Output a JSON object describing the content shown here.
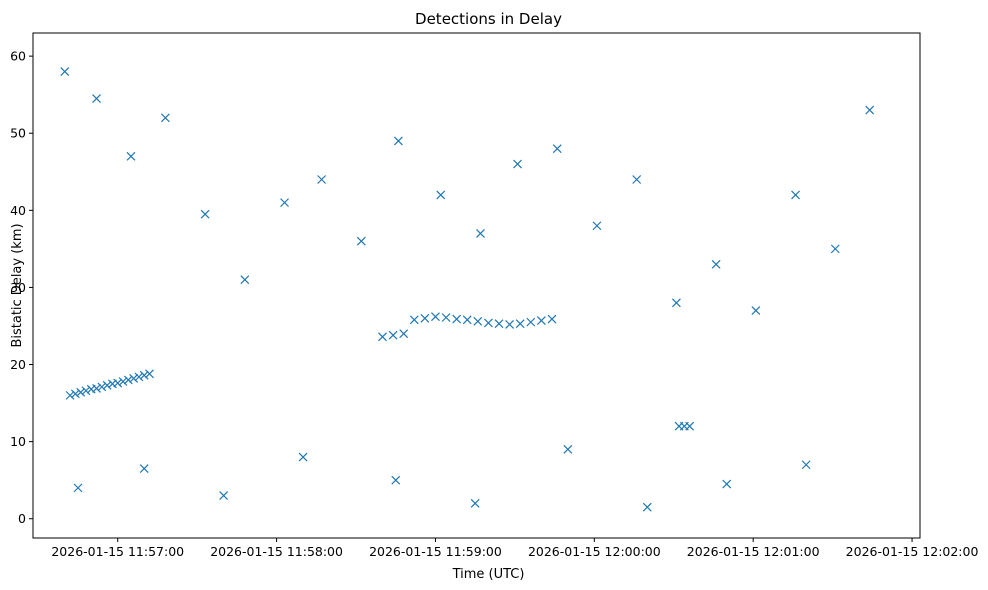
{
  "chart_data": {
    "type": "scatter",
    "title": "Detections in Delay",
    "xlabel": "Time (UTC)",
    "ylabel": "Bistatic Delay (km)",
    "marker": "x",
    "color": "#1f77b4",
    "grid": false,
    "xlim": [
      "2026-01-15 11:56:28",
      "2026-01-15 12:02:03"
    ],
    "ylim": [
      -2.5,
      63
    ],
    "x_ticks": [
      "2026-01-15 11:57:00",
      "2026-01-15 11:58:00",
      "2026-01-15 11:59:00",
      "2026-01-15 12:00:00",
      "2026-01-15 12:01:00",
      "2026-01-15 12:02:00"
    ],
    "y_ticks": [
      0,
      10,
      20,
      30,
      40,
      50,
      60
    ],
    "series": [
      {
        "points": [
          [
            "2026-01-15 11:56:42",
            16.0
          ],
          [
            "2026-01-15 11:56:44",
            16.2
          ],
          [
            "2026-01-15 11:56:46",
            16.4
          ],
          [
            "2026-01-15 11:56:48",
            16.6
          ],
          [
            "2026-01-15 11:56:50",
            16.8
          ],
          [
            "2026-01-15 11:56:52",
            16.9
          ],
          [
            "2026-01-15 11:56:54",
            17.1
          ],
          [
            "2026-01-15 11:56:56",
            17.3
          ],
          [
            "2026-01-15 11:56:58",
            17.5
          ],
          [
            "2026-01-15 11:57:00",
            17.6
          ],
          [
            "2026-01-15 11:57:02",
            17.8
          ],
          [
            "2026-01-15 11:57:04",
            18.0
          ],
          [
            "2026-01-15 11:57:06",
            18.2
          ],
          [
            "2026-01-15 11:57:08",
            18.4
          ],
          [
            "2026-01-15 11:57:10",
            18.6
          ],
          [
            "2026-01-15 11:57:12",
            18.8
          ],
          [
            "2026-01-15 11:58:40",
            23.6
          ],
          [
            "2026-01-15 11:58:44",
            23.8
          ],
          [
            "2026-01-15 11:58:48",
            24.0
          ],
          [
            "2026-01-15 11:58:52",
            25.8
          ],
          [
            "2026-01-15 11:58:56",
            26.0
          ],
          [
            "2026-01-15 11:59:00",
            26.2
          ],
          [
            "2026-01-15 11:59:04",
            26.1
          ],
          [
            "2026-01-15 11:59:08",
            25.9
          ],
          [
            "2026-01-15 11:59:12",
            25.8
          ],
          [
            "2026-01-15 11:59:16",
            25.6
          ],
          [
            "2026-01-15 11:59:20",
            25.4
          ],
          [
            "2026-01-15 11:59:24",
            25.3
          ],
          [
            "2026-01-15 11:59:28",
            25.2
          ],
          [
            "2026-01-15 11:59:32",
            25.3
          ],
          [
            "2026-01-15 11:59:36",
            25.5
          ],
          [
            "2026-01-15 11:59:40",
            25.7
          ],
          [
            "2026-01-15 11:59:44",
            25.9
          ],
          [
            "2026-01-15 12:00:32",
            12.0
          ],
          [
            "2026-01-15 12:00:34",
            12.0
          ],
          [
            "2026-01-15 12:00:36",
            12.0
          ],
          [
            "2026-01-15 11:56:40",
            58.0
          ],
          [
            "2026-01-15 11:56:52",
            54.5
          ],
          [
            "2026-01-15 11:57:05",
            47.0
          ],
          [
            "2026-01-15 11:57:18",
            52.0
          ],
          [
            "2026-01-15 11:57:33",
            39.5
          ],
          [
            "2026-01-15 11:57:48",
            31.0
          ],
          [
            "2026-01-15 11:58:03",
            41.0
          ],
          [
            "2026-01-15 11:58:17",
            44.0
          ],
          [
            "2026-01-15 11:58:32",
            36.0
          ],
          [
            "2026-01-15 11:58:46",
            49.0
          ],
          [
            "2026-01-15 11:59:02",
            42.0
          ],
          [
            "2026-01-15 11:59:17",
            37.0
          ],
          [
            "2026-01-15 11:59:31",
            46.0
          ],
          [
            "2026-01-15 11:59:46",
            48.0
          ],
          [
            "2026-01-15 12:00:01",
            38.0
          ],
          [
            "2026-01-15 12:00:16",
            44.0
          ],
          [
            "2026-01-15 12:00:31",
            28.0
          ],
          [
            "2026-01-15 12:00:46",
            33.0
          ],
          [
            "2026-01-15 12:01:01",
            27.0
          ],
          [
            "2026-01-15 12:01:16",
            42.0
          ],
          [
            "2026-01-15 12:01:31",
            35.0
          ],
          [
            "2026-01-15 12:01:44",
            53.0
          ],
          [
            "2026-01-15 11:56:45",
            4.0
          ],
          [
            "2026-01-15 11:57:10",
            6.5
          ],
          [
            "2026-01-15 11:57:40",
            3.0
          ],
          [
            "2026-01-15 11:58:10",
            8.0
          ],
          [
            "2026-01-15 11:58:45",
            5.0
          ],
          [
            "2026-01-15 11:59:15",
            2.0
          ],
          [
            "2026-01-15 11:59:50",
            9.0
          ],
          [
            "2026-01-15 12:00:20",
            1.5
          ],
          [
            "2026-01-15 12:00:50",
            4.5
          ],
          [
            "2026-01-15 12:01:20",
            7.0
          ]
        ]
      }
    ]
  }
}
